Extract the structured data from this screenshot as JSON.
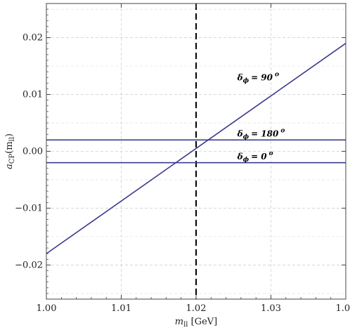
{
  "chart_data": {
    "type": "line",
    "x_label": "m",
    "x_label_sub": "ll",
    "x_label_unit": " [GeV]",
    "y_label": "a",
    "y_label_sub": "CP",
    "y_label_arg": "(m",
    "y_label_arg_sub": "ll",
    "y_label_close": ")",
    "xlim": [
      1.0,
      1.04
    ],
    "ylim": [
      -0.026,
      0.026
    ],
    "x_ticks": [
      1.0,
      1.01,
      1.02,
      1.03,
      1.04
    ],
    "x_tick_labels": [
      "1.00",
      "1.01",
      "1.02",
      "1.03",
      "1.04"
    ],
    "y_ticks": [
      -0.02,
      -0.01,
      0.0,
      0.01,
      0.02
    ],
    "y_tick_labels": [
      "−0.02",
      "−0.01",
      "0.00",
      "0.01",
      "0.02"
    ],
    "grid": true,
    "vertical_reference_line": {
      "x": 1.02,
      "style": "dashed",
      "color": "#000000"
    },
    "series_color": "#3b3b8f",
    "series": [
      {
        "name": "δϕ = 90 °",
        "label_text": "= 90",
        "x": [
          1.0,
          1.04
        ],
        "y": [
          -0.018,
          0.019
        ],
        "label_at": [
          1.0255,
          0.0125
        ]
      },
      {
        "name": "δϕ = 180 °",
        "label_text": "= 180",
        "x": [
          1.0,
          1.04
        ],
        "y": [
          0.002,
          0.002
        ],
        "label_at": [
          1.0255,
          0.0026
        ]
      },
      {
        "name": "δϕ = 0 °",
        "label_text": "= 0",
        "x": [
          1.0,
          1.04
        ],
        "y": [
          -0.002,
          -0.002
        ],
        "label_at": [
          1.0255,
          -0.0014
        ]
      }
    ]
  }
}
